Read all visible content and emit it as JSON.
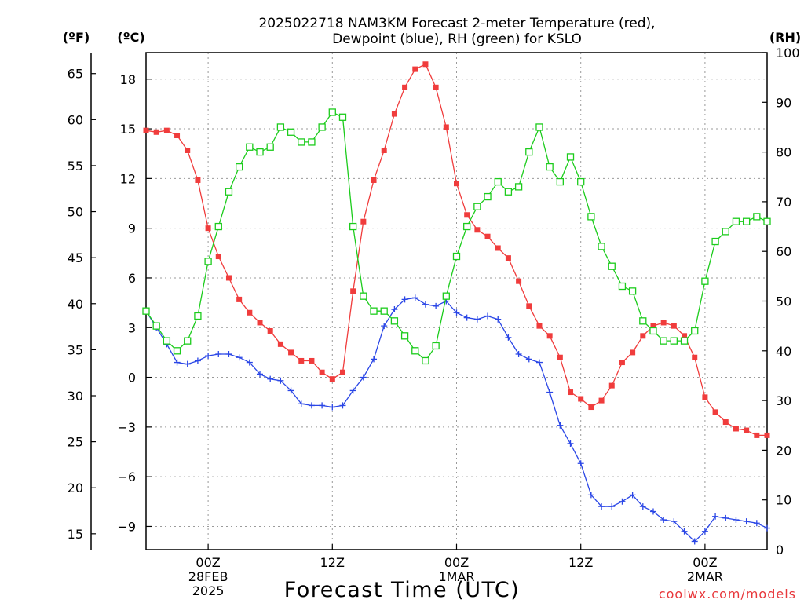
{
  "title": {
    "line1": "2025022718 NAM3KM Forecast 2-meter Temperature (red),",
    "line2": "Dewpoint (blue), RH (green) for KSLO"
  },
  "units": {
    "fahrenheit": "(ºF)",
    "celsius": "(ºC)",
    "rh": "(RH)"
  },
  "xlabel": "Forecast Time (UTC)",
  "watermark": "coolwx.com/models",
  "colors": {
    "temperature": "#f03c3c",
    "dewpoint": "#2a46e6",
    "rh": "#1ccc1c",
    "grid": "#9a9a9a"
  },
  "chart_data": {
    "type": "line",
    "x_unit": "hours since 2025-02-27 18Z",
    "x": [
      0,
      1,
      2,
      3,
      4,
      5,
      6,
      7,
      8,
      9,
      10,
      11,
      12,
      13,
      14,
      15,
      16,
      17,
      18,
      19,
      20,
      21,
      22,
      23,
      24,
      25,
      26,
      27,
      28,
      29,
      30,
      31,
      32,
      33,
      34,
      35,
      36,
      37,
      38,
      39,
      40,
      41,
      42,
      43,
      44,
      45,
      46,
      47,
      48,
      49,
      50,
      51,
      52,
      53,
      54,
      55,
      56,
      57,
      58,
      59,
      60
    ],
    "xlim": [
      0,
      60
    ],
    "x_ticks": [
      {
        "x": 6,
        "labels": [
          "00Z",
          "28FEB",
          "2025"
        ]
      },
      {
        "x": 18,
        "labels": [
          "12Z"
        ]
      },
      {
        "x": 30,
        "labels": [
          "00Z",
          "1MAR"
        ]
      },
      {
        "x": 42,
        "labels": [
          "12Z"
        ]
      },
      {
        "x": 54,
        "labels": [
          "00Z",
          "2MAR"
        ]
      }
    ],
    "y_left_celsius": {
      "ylim": [
        -10.4,
        19.6
      ],
      "ticks": [
        18,
        15,
        12,
        9,
        6,
        3,
        0,
        -3,
        -6,
        -9
      ]
    },
    "y_left_fahrenheit": {
      "ticks": [
        65,
        60,
        55,
        50,
        45,
        40,
        35,
        30,
        25,
        20,
        15
      ]
    },
    "y_right_rh": {
      "ylim": [
        0,
        100
      ],
      "ticks": [
        0,
        10,
        20,
        30,
        40,
        50,
        60,
        70,
        80,
        90,
        100
      ]
    },
    "series": [
      {
        "name": "Temperature",
        "axis": "celsius",
        "marker": "square-filled",
        "values": [
          14.9,
          14.8,
          14.9,
          14.6,
          13.7,
          11.9,
          9.0,
          7.3,
          6.0,
          4.7,
          3.9,
          3.3,
          2.8,
          2.0,
          1.5,
          1.0,
          1.0,
          0.3,
          -0.1,
          0.3,
          5.2,
          9.4,
          11.9,
          13.7,
          15.9,
          17.5,
          18.6,
          18.9,
          17.5,
          15.1,
          11.7,
          9.8,
          8.9,
          8.5,
          7.8,
          7.2,
          5.8,
          4.3,
          3.1,
          2.5,
          1.2,
          -0.9,
          -1.3,
          -1.8,
          -1.4,
          -0.5,
          0.9,
          1.5,
          2.5,
          3.1,
          3.3,
          3.1,
          2.5,
          1.2,
          -1.2,
          -2.1,
          -2.7,
          -3.1,
          -3.2,
          -3.5,
          -3.5
        ]
      },
      {
        "name": "Dewpoint",
        "axis": "celsius",
        "marker": "plus",
        "values": [
          4.0,
          3.0,
          2.0,
          0.9,
          0.8,
          1.0,
          1.3,
          1.4,
          1.4,
          1.2,
          0.9,
          0.2,
          -0.1,
          -0.2,
          -0.8,
          -1.6,
          -1.7,
          -1.7,
          -1.8,
          -1.7,
          -0.8,
          0.0,
          1.1,
          3.1,
          4.1,
          4.7,
          4.8,
          4.4,
          4.3,
          4.6,
          3.9,
          3.6,
          3.5,
          3.7,
          3.5,
          2.4,
          1.4,
          1.1,
          0.9,
          -0.9,
          -2.9,
          -4.0,
          -5.2,
          -7.1,
          -7.8,
          -7.8,
          -7.5,
          -7.1,
          -7.8,
          -8.1,
          -8.6,
          -8.7,
          -9.3,
          -9.9,
          -9.3,
          -8.4,
          -8.5,
          -8.6,
          -8.7,
          -8.8,
          -9.1
        ]
      },
      {
        "name": "RH",
        "axis": "rh",
        "marker": "square-open",
        "values": [
          48,
          45,
          42,
          40,
          42,
          47,
          58,
          65,
          72,
          77,
          81,
          80,
          81,
          85,
          84,
          82,
          82,
          85,
          88,
          87,
          65,
          51,
          48,
          48,
          46,
          43,
          40,
          38,
          41,
          51,
          59,
          65,
          69,
          71,
          74,
          72,
          73,
          80,
          85,
          77,
          74,
          79,
          74,
          67,
          61,
          57,
          53,
          52,
          46,
          44,
          42,
          42,
          42,
          44,
          54,
          62,
          64,
          66,
          66,
          67,
          66
        ]
      }
    ]
  }
}
